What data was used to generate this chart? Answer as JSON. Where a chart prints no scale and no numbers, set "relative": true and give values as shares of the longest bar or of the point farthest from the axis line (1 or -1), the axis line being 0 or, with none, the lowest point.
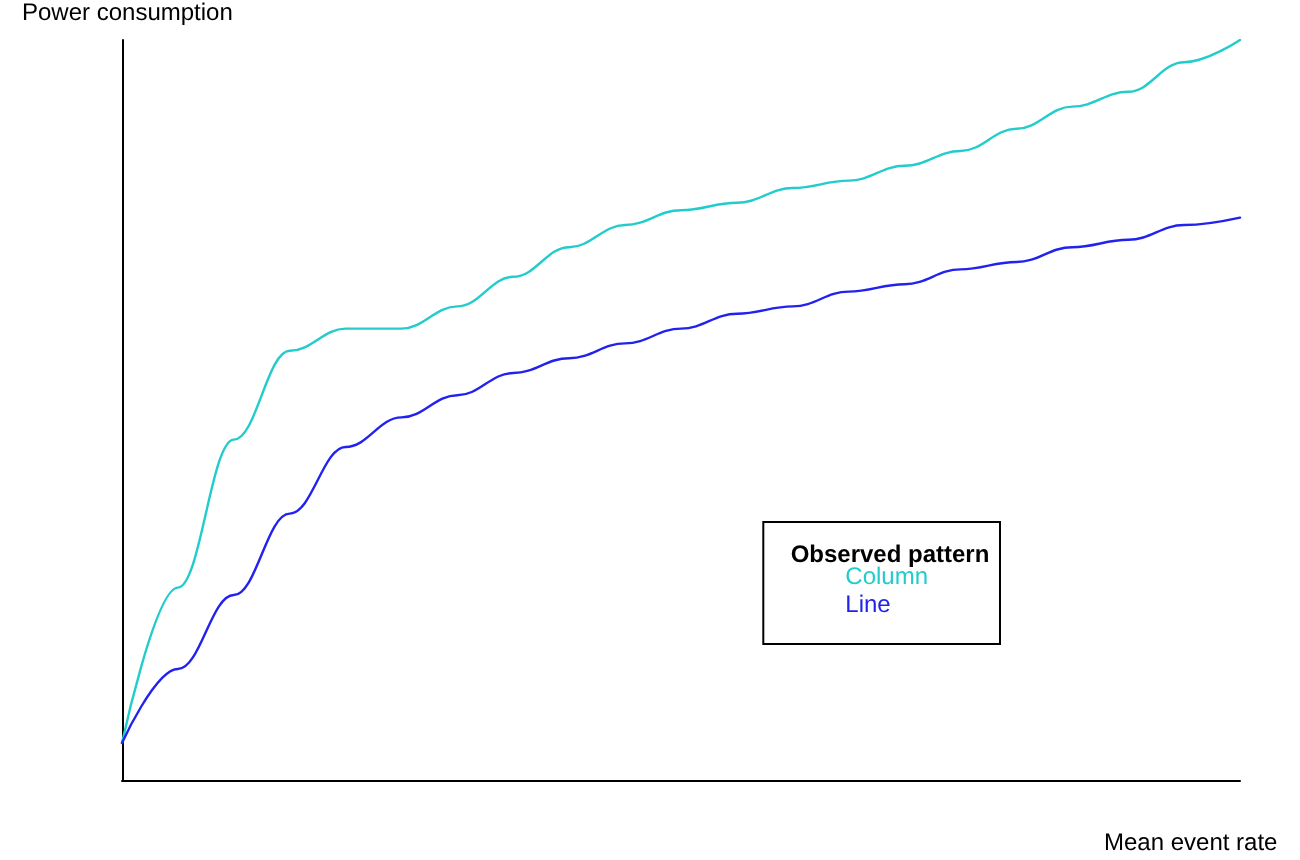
{
  "chart_data": {
    "type": "line",
    "relative": true,
    "xlabel": "Mean event rate",
    "ylabel": "Power consumption",
    "legend_title": "Observed pattern",
    "legend": "bottom right",
    "grid": false,
    "marker": "none",
    "line_style": "solid",
    "categories": [
      null,
      null,
      null,
      null,
      null,
      null,
      null,
      null,
      null,
      null,
      null,
      null,
      null,
      null,
      null,
      null,
      null,
      null,
      null,
      null,
      null
    ],
    "series": [
      {
        "name": "Column",
        "color": "#22cccc",
        "values": [
          0.05,
          0.26,
          0.46,
          0.58,
          0.61,
          0.61,
          0.64,
          0.68,
          0.72,
          0.75,
          0.77,
          0.78,
          0.8,
          0.81,
          0.83,
          0.85,
          0.88,
          0.91,
          0.93,
          0.97,
          1
        ]
      },
      {
        "name": "Line",
        "color": "#2222ee",
        "values": [
          0.05,
          0.15,
          0.25,
          0.36,
          0.45,
          0.49,
          0.52,
          0.55,
          0.57,
          0.59,
          0.61,
          0.63,
          0.64,
          0.66,
          0.67,
          0.69,
          0.7,
          0.72,
          0.73,
          0.75,
          0.76
        ]
      }
    ]
  }
}
